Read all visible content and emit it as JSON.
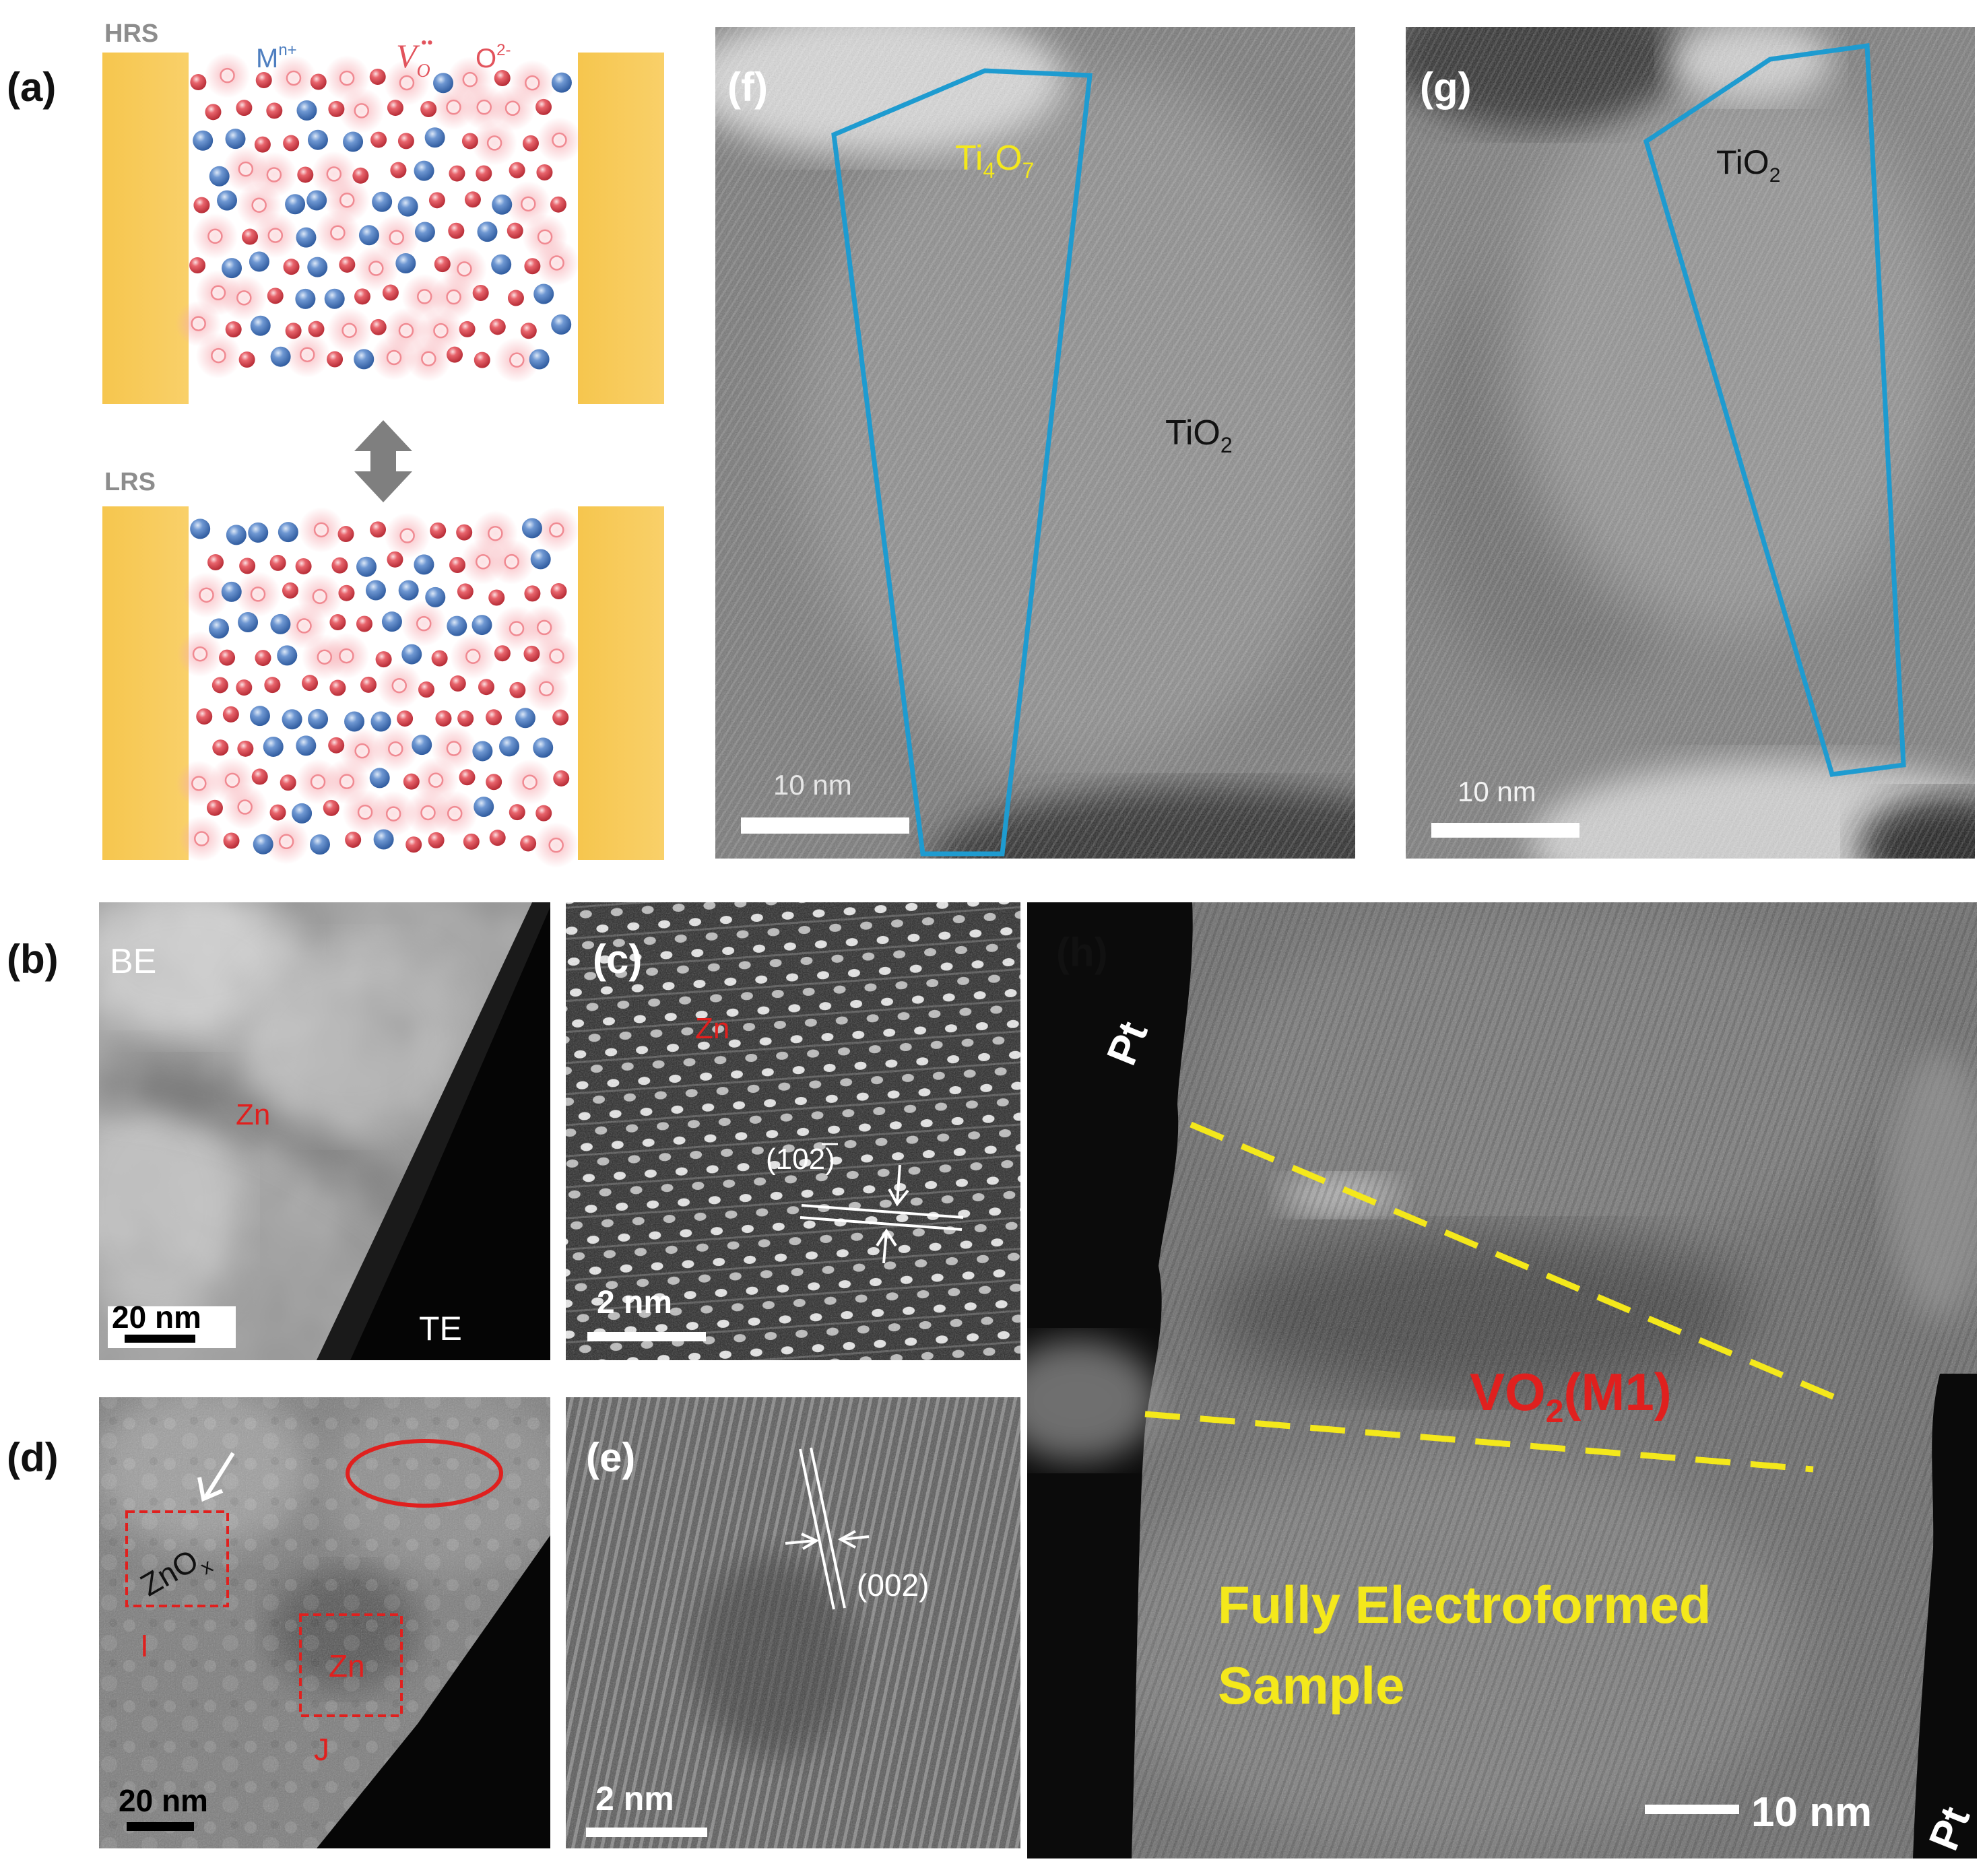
{
  "colors": {
    "electrode": "#F8C954",
    "metal_ion": "#4F7FC0",
    "oxygen_ion": "#E2535C",
    "vacancy_glow": "#F6A7AE",
    "outline_blue": "#1E9BD0",
    "label_red": "#E0201E",
    "label_yellow": "#F4E81B",
    "arrow_gray": "#808080"
  },
  "panel_a": {
    "label": "(a)",
    "hrs": "HRS",
    "lrs": "LRS",
    "metal_ion": "M",
    "metal_ion_charge": "n+",
    "vacancy": "V",
    "vacancy_sub": "O",
    "vacancy_charge": "••",
    "oxygen_ion": "O",
    "oxygen_ion_charge": "2-",
    "switch_arrow_icon": "double-arrow-icon"
  },
  "panel_b": {
    "label": "(b)",
    "top_label": "BE",
    "bottom_label": "TE",
    "phase": "Zn",
    "scale": "20 nm"
  },
  "panel_c": {
    "label": "(c)",
    "phase": "Zn",
    "plane": "(102)",
    "scale": "2 nm"
  },
  "panel_d": {
    "label": "(d)",
    "region_1_phase": "ZnO",
    "region_1_sub": "x",
    "region_1_id": "I",
    "region_2_phase": "Zn",
    "region_2_id": "J",
    "scale": "20 nm"
  },
  "panel_e": {
    "label": "(e)",
    "plane": "(002)",
    "scale": "2 nm"
  },
  "panel_f": {
    "label": "(f)",
    "filament_base": "Ti",
    "filament_sub1": "4",
    "filament_mid": "O",
    "filament_sub2": "7",
    "matrix_base": "TiO",
    "matrix_sub": "2",
    "scale": "10 nm"
  },
  "panel_g": {
    "label": "(g)",
    "phase_base": "TiO",
    "phase_sub": "2",
    "scale": "10 nm"
  },
  "panel_h": {
    "label": "(h)",
    "electrode_top": "Pt",
    "electrode_bottom": "Pt",
    "phase_base": "VO",
    "phase_sub": "2",
    "phase_suffix": "(M1)",
    "caption_line1": "Fully Electroformed",
    "caption_line2": "Sample",
    "scale": "10 nm"
  }
}
